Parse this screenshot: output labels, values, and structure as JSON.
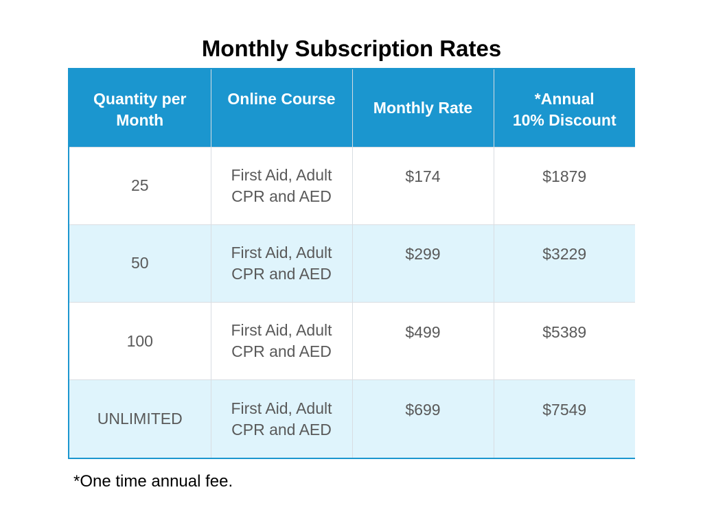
{
  "title": "Monthly Subscription Rates",
  "table": {
    "headers": [
      "Quantity per Month",
      "Online Course",
      "Monthly Rate",
      "*Annual\n10% Discount"
    ],
    "header_lines": {
      "col1": [
        "Quantity per",
        "Month"
      ],
      "col2": [
        "Online Course"
      ],
      "col3": [
        "Monthly Rate"
      ],
      "col4": [
        "*Annual",
        "10% Discount"
      ]
    },
    "rows": [
      {
        "quantity": "25",
        "course_lines": [
          "First Aid, Adult",
          "CPR and AED"
        ],
        "monthly_rate": "$174",
        "annual": "$1879"
      },
      {
        "quantity": "50",
        "course_lines": [
          "First Aid, Adult",
          "CPR and AED"
        ],
        "monthly_rate": "$299",
        "annual": "$3229"
      },
      {
        "quantity": "100",
        "course_lines": [
          "First Aid, Adult",
          "CPR and AED"
        ],
        "monthly_rate": "$499",
        "annual": "$5389"
      },
      {
        "quantity": "UNLIMITED",
        "course_lines": [
          "First Aid, Adult",
          "CPR and AED"
        ],
        "monthly_rate": "$699",
        "annual": "$7549"
      }
    ]
  },
  "footnote": "*One time annual fee.",
  "colors": {
    "header_bg": "#1b96cf",
    "header_text": "#ffffff",
    "alt_row_bg": "#dff4fc",
    "body_text": "#595959",
    "grid_line": "#d8dde2"
  }
}
